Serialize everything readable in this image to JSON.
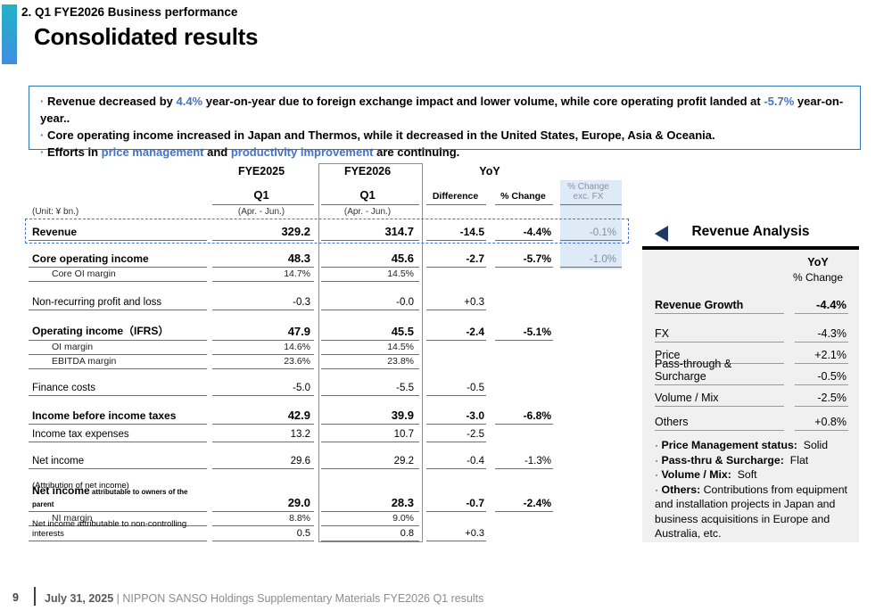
{
  "slide": {
    "eyebrow": "2. Q1 FYE2026 Business performance",
    "title": "Consolidated results"
  },
  "summary": {
    "bullets": [
      [
        {
          "t": "Revenue decreased by "
        },
        {
          "t": "4.4%",
          "c": true
        },
        {
          "t": " year-on-year due to foreign exchange impact and lower volume, while core operating profit landed at "
        },
        {
          "t": "-5.7%",
          "c": true
        },
        {
          "t": " year-on-year.."
        }
      ],
      [
        {
          "t": "Core operating income increased in Japan and Thermos, while it decreased in the United States, Europe, Asia & Oceania."
        }
      ],
      [
        {
          "t": "Efforts in "
        },
        {
          "t": "price management",
          "c": true
        },
        {
          "t": " and "
        },
        {
          "t": "productivity improvement",
          "c": true
        },
        {
          "t": " are continuing."
        }
      ]
    ]
  },
  "table": {
    "unit_label": "(Unit: ¥ bn.)",
    "col_groups": {
      "fye2025": "FYE2025",
      "fye2026": "FYE2026",
      "yoy": "YoY"
    },
    "subheads": {
      "q1": "Q1",
      "period": "(Apr. - Jun.)",
      "difference": "Difference",
      "pct_change": "% Change",
      "pct_change_fx_1": "% Change",
      "pct_change_fx_2": "exc. FX"
    },
    "rows": [
      {
        "label": "Revenue",
        "style": "main",
        "dashed": true,
        "values": [
          "329.2",
          "314.7",
          "-14.5",
          "-4.4%",
          "-0.1%"
        ]
      },
      {
        "label": "Core operating income",
        "style": "main",
        "gap": 8,
        "values": [
          "48.3",
          "45.6",
          "-2.7",
          "-5.7%",
          "-1.0%"
        ]
      },
      {
        "label": "Core OI margin",
        "style": "sub",
        "values": [
          "14.7%",
          "14.5%",
          "",
          "",
          ""
        ]
      },
      {
        "label": "Non-recurring profit and loss",
        "style": "plain",
        "gap": 12,
        "values": [
          "-0.3",
          "-0.0",
          "+0.3",
          "",
          ""
        ]
      },
      {
        "label": "Operating income（IFRS）",
        "style": "main",
        "gap": 12,
        "values": [
          "47.9",
          "45.5",
          "-2.4",
          "-5.1%",
          ""
        ]
      },
      {
        "label": "OI margin",
        "style": "sub",
        "values": [
          "14.6%",
          "14.5%",
          "",
          "",
          ""
        ]
      },
      {
        "label": "EBITDA margin",
        "style": "sub",
        "values": [
          "23.6%",
          "23.8%",
          "",
          "",
          ""
        ]
      },
      {
        "label": "Finance costs",
        "style": "plain",
        "gap": 10,
        "values": [
          "-5.0",
          "-5.5",
          "-0.5",
          "",
          ""
        ]
      },
      {
        "label": "Income before income taxes",
        "style": "main",
        "gap": 10,
        "values": [
          "42.9",
          "39.9",
          "-3.0",
          "-6.8%",
          ""
        ]
      },
      {
        "label": "Income tax expenses",
        "style": "plain",
        "values": [
          "13.2",
          "10.7",
          "-2.5",
          "",
          ""
        ]
      },
      {
        "label": "Net income",
        "style": "plain",
        "gap": 10,
        "values": [
          "29.6",
          "29.2",
          "-0.4",
          "-1.3%",
          ""
        ]
      },
      {
        "label": "(Attribution of net income)",
        "style": "note",
        "gap": 12,
        "noline": true,
        "values": [
          "",
          "",
          "",
          "",
          ""
        ]
      },
      {
        "label": "Net income",
        "suffix": "attributable to owners of the parent",
        "style": "main",
        "values": [
          "29.0",
          "28.3",
          "-0.7",
          "-2.4%",
          ""
        ]
      },
      {
        "label": "NI margin",
        "style": "sub",
        "values": [
          "8.8%",
          "9.0%",
          "",
          "",
          ""
        ]
      },
      {
        "label": "Net income attributable to non-controlling interests",
        "style": "small",
        "values": [
          "0.5",
          "0.8",
          "+0.3",
          "",
          ""
        ]
      }
    ]
  },
  "analysis": {
    "title": "Revenue Analysis",
    "yoy_label": "YoY",
    "pct_change_label": "% Change",
    "rows": [
      {
        "label": "Revenue Growth",
        "value": "-4.4%",
        "bold": true
      },
      {
        "label": "FX",
        "value": "-4.3%",
        "gap": 8
      },
      {
        "label": "Price",
        "value": "+2.1%"
      },
      {
        "label": "Pass-through & Surcharge",
        "value": "-0.5%"
      },
      {
        "label": "Volume / Mix",
        "value": "-2.5%"
      },
      {
        "label": "Others",
        "value": "+0.8%",
        "gap": 3
      }
    ],
    "notes": [
      [
        {
          "t": "Price Management status:",
          "b": true
        },
        {
          "t": "  Solid"
        }
      ],
      [
        {
          "t": "Pass-thru & Surcharge:",
          "b": true
        },
        {
          "t": "  Flat"
        }
      ],
      [
        {
          "t": "Volume / Mix:",
          "b": true
        },
        {
          "t": "  Soft"
        }
      ],
      [
        {
          "t": "Others:",
          "b": true
        },
        {
          "t": " Contributions from equipment and installation projects in Japan and business acquisitions in Europe and Australia, etc."
        }
      ]
    ]
  },
  "footer": {
    "page": "9",
    "date": "July 31, 2025",
    "separator": "|",
    "source": "NIPPON SANSO Holdings Supplementary Materials FYE2026 Q1 results"
  },
  "colors": {
    "accent_text": "#4472C4",
    "summary_border": "#2E75B6",
    "fye2026_box": "#5B9BD5",
    "fx_column_bg": "#DEEAF6",
    "fx_column_text": "#7D8DA1",
    "analysis_panel_bg": "#F0F0F0",
    "triangle": "#1F3864",
    "accent_bar_top": "#22B2C6",
    "accent_bar_bottom": "#3F8EE0"
  }
}
